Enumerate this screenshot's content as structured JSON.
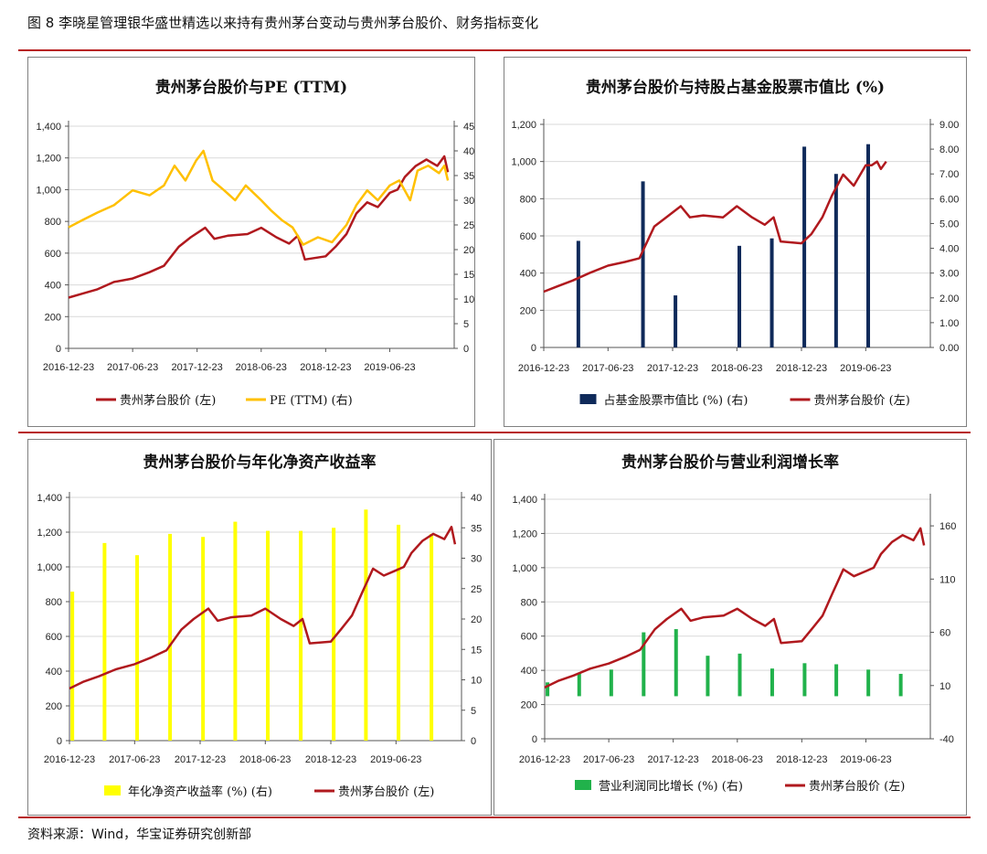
{
  "figure_title": "图 8 李晓星管理银华盛世精选以来持有贵州茅台变动与贵州茅台股价、财务指标变化",
  "source_note": "资料来源：Wind，华宝证券研究创新部",
  "colors": {
    "price": "#b0191e",
    "pe": "#ffc000",
    "holding": "#0f2a5a",
    "roe": "#ffff00",
    "profit": "#21b24b",
    "rule": "#b71c1c"
  },
  "chart_data": [
    {
      "type": "line",
      "title": "贵州茅台股价与PE (TTM)",
      "x_ticks": [
        "2016-12-23",
        "2017-06-23",
        "2017-12-23",
        "2018-06-23",
        "2018-12-23",
        "2019-06-23"
      ],
      "y_left": {
        "min": 0,
        "max": 1400,
        "ticks": [
          "0",
          "200",
          "400",
          "600",
          "800",
          "1,000",
          "1,200",
          "1,400"
        ]
      },
      "y_right": {
        "min": 0,
        "max": 45,
        "ticks": [
          "0",
          "5",
          "10",
          "15",
          "20",
          "25",
          "30",
          "35",
          "40",
          "45"
        ]
      },
      "series": [
        {
          "name": "贵州茅台股价 (左)",
          "axis": "left",
          "kind": "line",
          "color": "#b0191e",
          "points": [
            [
              "2016-12-23",
              320
            ],
            [
              "2017-02-01",
              345
            ],
            [
              "2017-03-15",
              372
            ],
            [
              "2017-05-01",
              418
            ],
            [
              "2017-06-23",
              440
            ],
            [
              "2017-08-10",
              480
            ],
            [
              "2017-09-20",
              520
            ],
            [
              "2017-11-01",
              640
            ],
            [
              "2017-12-05",
              700
            ],
            [
              "2018-01-15",
              760
            ],
            [
              "2018-02-10",
              690
            ],
            [
              "2018-03-20",
              710
            ],
            [
              "2018-05-15",
              720
            ],
            [
              "2018-06-23",
              760
            ],
            [
              "2018-08-05",
              700
            ],
            [
              "2018-09-10",
              660
            ],
            [
              "2018-10-05",
              710
            ],
            [
              "2018-10-25",
              560
            ],
            [
              "2018-12-23",
              580
            ],
            [
              "2019-01-20",
              640
            ],
            [
              "2019-02-20",
              720
            ],
            [
              "2019-03-20",
              850
            ],
            [
              "2019-04-20",
              920
            ],
            [
              "2019-05-20",
              890
            ],
            [
              "2019-06-23",
              980
            ],
            [
              "2019-07-15",
              1000
            ],
            [
              "2019-08-05",
              1080
            ],
            [
              "2019-09-05",
              1150
            ],
            [
              "2019-10-05",
              1190
            ],
            [
              "2019-11-05",
              1150
            ],
            [
              "2019-11-25",
              1210
            ],
            [
              "2019-12-05",
              1110
            ]
          ]
        },
        {
          "name": "PE (TTM) (右)",
          "axis": "right",
          "kind": "line",
          "color": "#ffc000",
          "points": [
            [
              "2016-12-23",
              24.5
            ],
            [
              "2017-02-01",
              26
            ],
            [
              "2017-03-15",
              27.5
            ],
            [
              "2017-05-01",
              29
            ],
            [
              "2017-06-23",
              32
            ],
            [
              "2017-08-10",
              31
            ],
            [
              "2017-09-20",
              33
            ],
            [
              "2017-10-20",
              37
            ],
            [
              "2017-11-20",
              34
            ],
            [
              "2017-12-20",
              38
            ],
            [
              "2018-01-10",
              40
            ],
            [
              "2018-02-05",
              34
            ],
            [
              "2018-03-10",
              32
            ],
            [
              "2018-04-10",
              30
            ],
            [
              "2018-05-10",
              33
            ],
            [
              "2018-06-23",
              30
            ],
            [
              "2018-07-20",
              28
            ],
            [
              "2018-08-20",
              26
            ],
            [
              "2018-09-20",
              24.5
            ],
            [
              "2018-10-20",
              21
            ],
            [
              "2018-12-01",
              22.5
            ],
            [
              "2019-01-10",
              21.5
            ],
            [
              "2019-02-20",
              25
            ],
            [
              "2019-03-20",
              29
            ],
            [
              "2019-04-20",
              32
            ],
            [
              "2019-05-20",
              30
            ],
            [
              "2019-06-23",
              33
            ],
            [
              "2019-07-20",
              34
            ],
            [
              "2019-08-20",
              30
            ],
            [
              "2019-09-10",
              36
            ],
            [
              "2019-10-10",
              37
            ],
            [
              "2019-11-10",
              35.5
            ],
            [
              "2019-11-25",
              37
            ],
            [
              "2019-12-05",
              34
            ]
          ]
        }
      ],
      "legend": [
        "贵州茅台股价 (左)",
        "PE (TTM) (右)"
      ],
      "legend_position": "bottom"
    },
    {
      "type": "bar+line",
      "title": "贵州茅台股价与持股占基金股票市值比 (%)",
      "x_ticks": [
        "2016-12-23",
        "2017-06-23",
        "2017-12-23",
        "2018-06-23",
        "2018-12-23",
        "2019-06-23"
      ],
      "y_left": {
        "min": 0,
        "max": 1200,
        "ticks": [
          "0",
          "200",
          "400",
          "600",
          "800",
          "1,000",
          "1,200"
        ]
      },
      "y_right": {
        "min": 0,
        "max": 9,
        "ticks": [
          "0.00",
          "1.00",
          "2.00",
          "3.00",
          "4.00",
          "5.00",
          "6.00",
          "7.00",
          "8.00",
          "9.00"
        ]
      },
      "series": [
        {
          "name": "占基金股票市值比 (%) (右)",
          "axis": "right",
          "kind": "bar",
          "color": "#0f2a5a",
          "points": [
            [
              "2017-03-31",
              4.3
            ],
            [
              "2017-09-30",
              6.7
            ],
            [
              "2017-12-31",
              2.1
            ],
            [
              "2018-06-30",
              4.1
            ],
            [
              "2018-09-30",
              4.4
            ],
            [
              "2018-12-31",
              8.1
            ],
            [
              "2019-03-31",
              7.0
            ],
            [
              "2019-06-30",
              8.2
            ]
          ]
        },
        {
          "name": "贵州茅台股价 (左)",
          "axis": "left",
          "kind": "line",
          "color": "#b0191e",
          "points": [
            [
              "2016-12-23",
              300
            ],
            [
              "2017-02-01",
              330
            ],
            [
              "2017-03-15",
              360
            ],
            [
              "2017-05-01",
              400
            ],
            [
              "2017-06-23",
              440
            ],
            [
              "2017-08-10",
              460
            ],
            [
              "2017-09-20",
              480
            ],
            [
              "2017-11-01",
              650
            ],
            [
              "2017-12-05",
              700
            ],
            [
              "2018-01-15",
              760
            ],
            [
              "2018-02-10",
              700
            ],
            [
              "2018-03-20",
              710
            ],
            [
              "2018-05-15",
              700
            ],
            [
              "2018-06-23",
              760
            ],
            [
              "2018-08-05",
              700
            ],
            [
              "2018-09-10",
              660
            ],
            [
              "2018-10-05",
              700
            ],
            [
              "2018-10-25",
              570
            ],
            [
              "2018-12-23",
              560
            ],
            [
              "2019-01-20",
              610
            ],
            [
              "2019-02-20",
              700
            ],
            [
              "2019-03-20",
              820
            ],
            [
              "2019-04-20",
              930
            ],
            [
              "2019-05-20",
              870
            ],
            [
              "2019-06-23",
              980
            ],
            [
              "2019-07-10",
              980
            ],
            [
              "2019-07-25",
              1000
            ],
            [
              "2019-08-05",
              960
            ],
            [
              "2019-08-20",
              1000
            ]
          ]
        }
      ],
      "legend": [
        "占基金股票市值比 (%) (右)",
        "贵州茅台股价 (左)"
      ],
      "legend_position": "bottom"
    },
    {
      "type": "bar+line",
      "title": "贵州茅台股价与年化净资产收益率",
      "x_ticks": [
        "2016-12-23",
        "2017-06-23",
        "2017-12-23",
        "2018-06-23",
        "2018-12-23",
        "2019-06-23"
      ],
      "y_left": {
        "min": 0,
        "max": 1400,
        "ticks": [
          "0",
          "200",
          "400",
          "600",
          "800",
          "1,000",
          "1,200",
          "1,400"
        ]
      },
      "y_right": {
        "min": 0,
        "max": 40,
        "ticks": [
          "0",
          "5",
          "10",
          "15",
          "20",
          "25",
          "30",
          "35",
          "40"
        ]
      },
      "series": [
        {
          "name": "年化净资产收益率 (%) (右)",
          "axis": "right",
          "kind": "bar",
          "color": "#ffff00",
          "points": [
            [
              "2016-12-31",
              24.5
            ],
            [
              "2017-03-31",
              32.5
            ],
            [
              "2017-06-30",
              30.5
            ],
            [
              "2017-09-30",
              34
            ],
            [
              "2017-12-31",
              33.5
            ],
            [
              "2018-03-31",
              36
            ],
            [
              "2018-06-30",
              34.5
            ],
            [
              "2018-09-30",
              34.5
            ],
            [
              "2018-12-31",
              35
            ],
            [
              "2019-03-31",
              38
            ],
            [
              "2019-06-30",
              35.5
            ],
            [
              "2019-09-30",
              34
            ]
          ]
        },
        {
          "name": "贵州茅台股价 (左)",
          "axis": "left",
          "kind": "line",
          "color": "#b0191e",
          "points": [
            [
              "2016-12-23",
              300
            ],
            [
              "2017-02-01",
              340
            ],
            [
              "2017-03-15",
              370
            ],
            [
              "2017-05-01",
              410
            ],
            [
              "2017-06-23",
              440
            ],
            [
              "2017-08-10",
              480
            ],
            [
              "2017-09-20",
              520
            ],
            [
              "2017-11-01",
              640
            ],
            [
              "2017-12-05",
              700
            ],
            [
              "2018-01-15",
              760
            ],
            [
              "2018-02-10",
              690
            ],
            [
              "2018-03-20",
              710
            ],
            [
              "2018-05-15",
              720
            ],
            [
              "2018-06-23",
              760
            ],
            [
              "2018-08-05",
              700
            ],
            [
              "2018-09-10",
              660
            ],
            [
              "2018-10-05",
              700
            ],
            [
              "2018-10-25",
              560
            ],
            [
              "2018-12-23",
              570
            ],
            [
              "2019-01-20",
              640
            ],
            [
              "2019-02-20",
              720
            ],
            [
              "2019-03-20",
              850
            ],
            [
              "2019-04-20",
              990
            ],
            [
              "2019-05-20",
              950
            ],
            [
              "2019-06-23",
              980
            ],
            [
              "2019-07-15",
              1000
            ],
            [
              "2019-08-05",
              1080
            ],
            [
              "2019-09-05",
              1150
            ],
            [
              "2019-10-05",
              1190
            ],
            [
              "2019-11-05",
              1160
            ],
            [
              "2019-11-25",
              1230
            ],
            [
              "2019-12-05",
              1130
            ]
          ]
        }
      ],
      "legend": [
        "年化净资产收益率 (%) (右)",
        "贵州茅台股价 (左)"
      ],
      "legend_position": "bottom"
    },
    {
      "type": "bar+line",
      "title": "贵州茅台股价与营业利润增长率",
      "x_ticks": [
        "2016-12-23",
        "2017-06-23",
        "2017-12-23",
        "2018-06-23",
        "2018-12-23",
        "2019-06-23"
      ],
      "y_left": {
        "min": 0,
        "max": 1400,
        "ticks": [
          "0",
          "200",
          "400",
          "600",
          "800",
          "1,000",
          "1,200",
          "1,400"
        ]
      },
      "y_right": {
        "min": -40,
        "max": 185,
        "ticks": [
          "-40",
          "10",
          "60",
          "110",
          "160"
        ]
      },
      "series": [
        {
          "name": "营业利润同比增长 (%) (右)",
          "axis": "right",
          "kind": "bar",
          "color": "#21b24b",
          "points": [
            [
              "2016-12-31",
              13
            ],
            [
              "2017-03-31",
              22
            ],
            [
              "2017-06-30",
              25
            ],
            [
              "2017-09-30",
              60
            ],
            [
              "2017-12-31",
              63
            ],
            [
              "2018-03-31",
              38
            ],
            [
              "2018-06-30",
              40
            ],
            [
              "2018-09-30",
              26
            ],
            [
              "2018-12-31",
              31
            ],
            [
              "2019-03-31",
              30
            ],
            [
              "2019-06-30",
              25
            ],
            [
              "2019-09-30",
              21
            ]
          ]
        },
        {
          "name": "贵州茅台股价 (左)",
          "axis": "left",
          "kind": "line",
          "color": "#b0191e",
          "points": [
            [
              "2016-12-23",
              300
            ],
            [
              "2017-02-01",
              340
            ],
            [
              "2017-03-15",
              370
            ],
            [
              "2017-05-01",
              410
            ],
            [
              "2017-06-23",
              440
            ],
            [
              "2017-08-10",
              480
            ],
            [
              "2017-09-20",
              520
            ],
            [
              "2017-11-01",
              640
            ],
            [
              "2017-12-05",
              700
            ],
            [
              "2018-01-15",
              760
            ],
            [
              "2018-02-10",
              690
            ],
            [
              "2018-03-20",
              710
            ],
            [
              "2018-05-15",
              720
            ],
            [
              "2018-06-23",
              760
            ],
            [
              "2018-08-05",
              700
            ],
            [
              "2018-09-10",
              660
            ],
            [
              "2018-10-05",
              700
            ],
            [
              "2018-10-25",
              560
            ],
            [
              "2018-12-23",
              570
            ],
            [
              "2019-01-20",
              640
            ],
            [
              "2019-02-20",
              720
            ],
            [
              "2019-03-20",
              850
            ],
            [
              "2019-04-20",
              990
            ],
            [
              "2019-05-20",
              950
            ],
            [
              "2019-06-23",
              980
            ],
            [
              "2019-07-15",
              1000
            ],
            [
              "2019-08-05",
              1080
            ],
            [
              "2019-09-05",
              1150
            ],
            [
              "2019-10-05",
              1190
            ],
            [
              "2019-11-05",
              1160
            ],
            [
              "2019-11-25",
              1230
            ],
            [
              "2019-12-05",
              1130
            ]
          ]
        }
      ],
      "legend": [
        "营业利润同比增长 (%) (右)",
        "贵州茅台股价 (左)"
      ],
      "legend_position": "bottom"
    }
  ]
}
